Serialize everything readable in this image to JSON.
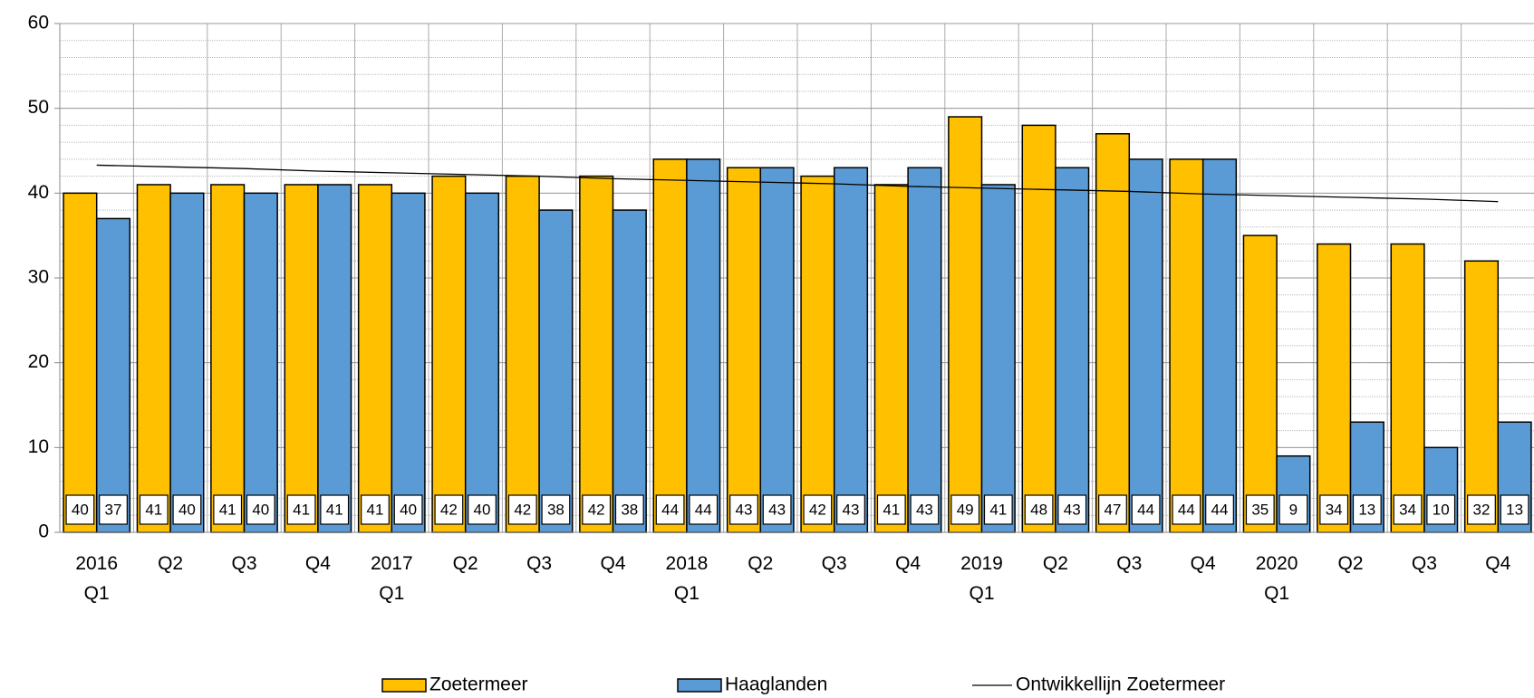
{
  "chart_data": {
    "type": "bar",
    "categories": [
      "2016\nQ1",
      "Q2",
      "Q3",
      "Q4",
      "2017\nQ1",
      "Q2",
      "Q3",
      "Q4",
      "2018\nQ1",
      "Q2",
      "Q3",
      "Q4",
      "2019\nQ1",
      "Q2",
      "Q3",
      "Q4",
      "2020\nQ1",
      "Q2",
      "Q3",
      "Q4"
    ],
    "series": [
      {
        "name": "Zoetermeer",
        "color": "#ffc000",
        "values": [
          40,
          41,
          41,
          41,
          41,
          42,
          42,
          42,
          44,
          43,
          42,
          41,
          49,
          48,
          47,
          44,
          35,
          34,
          34,
          32
        ]
      },
      {
        "name": "Haaglanden",
        "color": "#5b9bd5",
        "values": [
          37,
          40,
          40,
          41,
          40,
          40,
          38,
          38,
          44,
          43,
          43,
          43,
          41,
          43,
          44,
          44,
          9,
          13,
          10,
          13
        ]
      }
    ],
    "trend": {
      "name": "Ontwikkellijn Zoetermeer",
      "color": "#000000",
      "values": [
        43.3,
        43.1,
        42.9,
        42.6,
        42.4,
        42.2,
        42.0,
        41.7,
        41.5,
        41.3,
        41.1,
        40.8,
        40.6,
        40.4,
        40.2,
        39.9,
        39.7,
        39.5,
        39.3,
        39.0
      ]
    },
    "ylim": [
      0,
      60
    ],
    "yticks": [
      0,
      10,
      20,
      30,
      40,
      50,
      60
    ],
    "minor_step": 2,
    "grid": true,
    "legend": "bottom"
  }
}
